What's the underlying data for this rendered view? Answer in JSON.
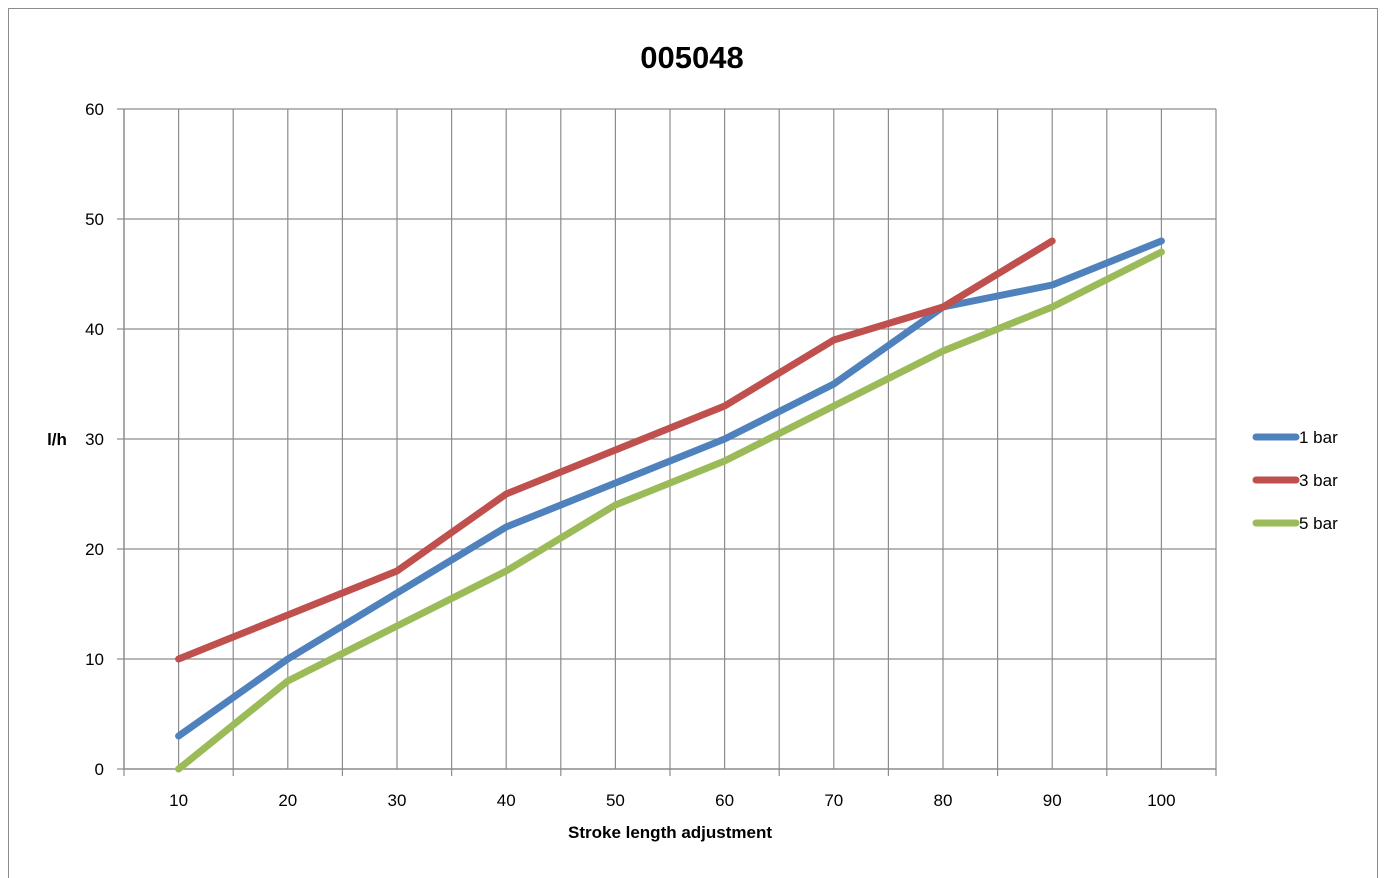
{
  "chart_data": {
    "type": "line",
    "title": "005048",
    "xlabel": "Stroke length adjustment",
    "ylabel": "l/h",
    "categories": [
      "10",
      "20",
      "30",
      "40",
      "50",
      "60",
      "70",
      "80",
      "90",
      "100"
    ],
    "ylim": [
      0,
      60
    ],
    "yticks": [
      "0",
      "10",
      "20",
      "30",
      "40",
      "50",
      "60"
    ],
    "grid": true,
    "legend_position": "right",
    "series": [
      {
        "name": "1 bar",
        "color": "#4f81bd",
        "values": [
          3,
          10,
          16,
          22,
          26,
          30,
          35,
          42,
          44,
          48
        ]
      },
      {
        "name": "3 bar",
        "color": "#c0504d",
        "values": [
          10,
          14,
          18,
          25,
          29,
          33,
          39,
          42,
          48,
          null
        ]
      },
      {
        "name": "5 bar",
        "color": "#9bbb59",
        "values": [
          0,
          8,
          13,
          18,
          24,
          28,
          33,
          38,
          42,
          47
        ]
      }
    ]
  }
}
